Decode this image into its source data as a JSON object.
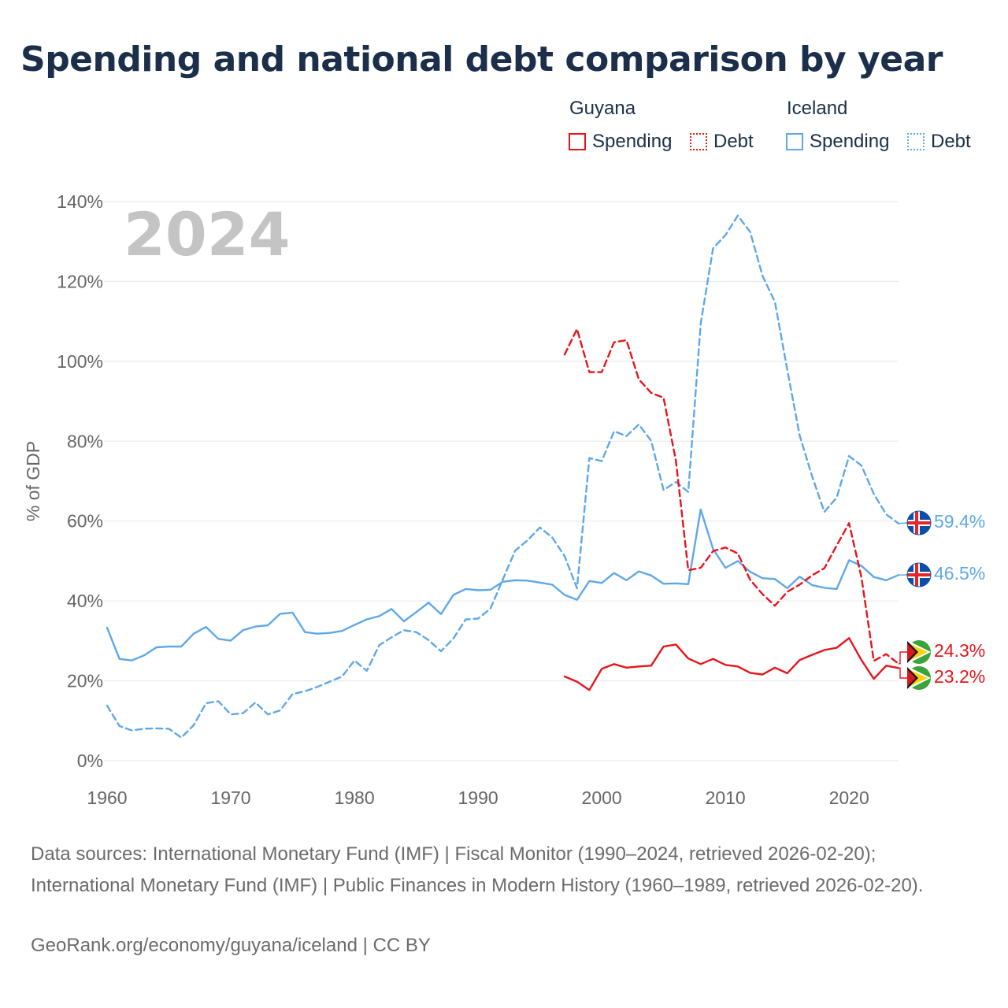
{
  "title": "Spending and national debt comparison by year",
  "legend": {
    "groups": [
      {
        "name": "Guyana",
        "color": "#e8141a",
        "items": [
          {
            "label": "Spending",
            "style": "solid"
          },
          {
            "label": "Debt",
            "style": "dotted"
          }
        ]
      },
      {
        "name": "Iceland",
        "color": "#5fa8e8",
        "items": [
          {
            "label": "Spending",
            "style": "solid"
          },
          {
            "label": "Debt",
            "style": "dotted"
          }
        ]
      }
    ]
  },
  "chart_data": {
    "type": "line",
    "title": "Spending and national debt comparison by year",
    "ylabel": "% of GDP",
    "xlabel": "",
    "year_label": "2024",
    "xlim": [
      1960,
      2024
    ],
    "ylim": [
      0,
      140
    ],
    "x_ticks": [
      1960,
      1970,
      1980,
      1990,
      2000,
      2010,
      2020
    ],
    "y_ticks": [
      0,
      20,
      40,
      60,
      80,
      100,
      120,
      140
    ],
    "y_tick_labels": [
      "0%",
      "20%",
      "40%",
      "60%",
      "80%",
      "100%",
      "120%",
      "140%"
    ],
    "grid": true,
    "series": [
      {
        "name": "Iceland Spending",
        "country": "Iceland",
        "measure": "Spending",
        "color": "#5fa8e8",
        "dash": "solid",
        "start_year": 1960,
        "values": [
          33.3,
          25.5,
          25.1,
          26.4,
          28.4,
          28.6,
          28.6,
          31.8,
          33.5,
          30.5,
          30.1,
          32.7,
          33.6,
          33.9,
          36.8,
          37.1,
          32.2,
          31.8,
          32.0,
          32.5,
          34.0,
          35.4,
          36.2,
          38.0,
          34.9,
          37.2,
          39.6,
          36.7,
          41.5,
          43.0,
          42.7,
          42.8,
          44.8,
          45.2,
          45.1,
          44.6,
          44.1,
          41.5,
          40.3,
          45.0,
          44.5,
          47.0,
          45.2,
          47.4,
          46.4,
          44.3,
          44.4,
          44.2,
          62.9,
          53.0,
          48.3,
          50.0,
          47.3,
          45.7,
          45.5,
          43.2,
          46.1,
          44.0,
          43.3,
          43.0,
          50.2,
          48.8,
          46.0,
          45.2,
          46.5
        ],
        "end_label": "46.5%"
      },
      {
        "name": "Iceland Debt",
        "country": "Iceland",
        "measure": "Debt",
        "color": "#5fa8e8",
        "dash": "dashed",
        "start_year": 1960,
        "values": [
          13.8,
          8.7,
          7.6,
          8.0,
          8.1,
          8.0,
          5.8,
          8.9,
          14.4,
          14.9,
          11.6,
          11.9,
          14.6,
          11.6,
          12.6,
          16.7,
          17.4,
          18.5,
          19.8,
          21.1,
          25.1,
          22.5,
          28.9,
          30.9,
          32.7,
          32.2,
          30.2,
          27.4,
          30.6,
          35.4,
          35.6,
          38.1,
          45.4,
          52.6,
          55.2,
          58.4,
          55.9,
          51.2,
          43.2,
          75.8,
          75.0,
          82.5,
          81.3,
          84.2,
          80.1,
          67.8,
          69.8,
          67.3,
          109.5,
          128.3,
          131.6,
          136.5,
          132.4,
          121.4,
          114.9,
          97.9,
          81.5,
          71.3,
          62.3,
          65.9,
          76.3,
          73.9,
          66.8,
          61.7,
          59.4
        ],
        "end_label": "59.4%"
      },
      {
        "name": "Guyana Spending",
        "country": "Guyana",
        "measure": "Spending",
        "color": "#e8141a",
        "dash": "solid",
        "start_year": 1997,
        "values": [
          21.1,
          19.8,
          17.7,
          23.0,
          24.2,
          23.3,
          23.6,
          23.8,
          28.6,
          29.1,
          25.6,
          24.2,
          25.5,
          24.0,
          23.6,
          22.0,
          21.6,
          23.3,
          21.9,
          25.2,
          26.5,
          27.7,
          28.3,
          30.7,
          25.2,
          20.5,
          23.8,
          23.2
        ],
        "end_label": "23.2%"
      },
      {
        "name": "Guyana Debt",
        "country": "Guyana",
        "measure": "Debt",
        "color": "#e8141a",
        "dash": "dashed",
        "start_year": 1997,
        "values": [
          101.7,
          108.1,
          97.3,
          97.3,
          104.8,
          105.3,
          95.5,
          92.1,
          90.9,
          75.1,
          47.7,
          48.3,
          52.5,
          53.4,
          51.9,
          45.3,
          41.7,
          38.8,
          42.3,
          44.1,
          46.4,
          48.2,
          53.9,
          59.5,
          45.9,
          25.0,
          26.7,
          24.3
        ],
        "end_label": "24.3%"
      }
    ]
  },
  "end_flags": [
    {
      "series": "Iceland Debt",
      "flag": "iceland-flag-icon"
    },
    {
      "series": "Iceland Spending",
      "flag": "iceland-flag-icon"
    },
    {
      "series": "Guyana Debt",
      "flag": "guyana-flag-icon"
    },
    {
      "series": "Guyana Spending",
      "flag": "guyana-flag-icon"
    }
  ],
  "footer": {
    "sources": "Data sources: International Monetary Fund (IMF) | Fiscal Monitor (1990–2024, retrieved 2026-02-20); International Monetary Fund (IMF) | Public Finances in Modern History (1960–1989, retrieved 2026-02-20).",
    "credit": "GeoRank.org/economy/guyana/iceland | CC BY"
  }
}
